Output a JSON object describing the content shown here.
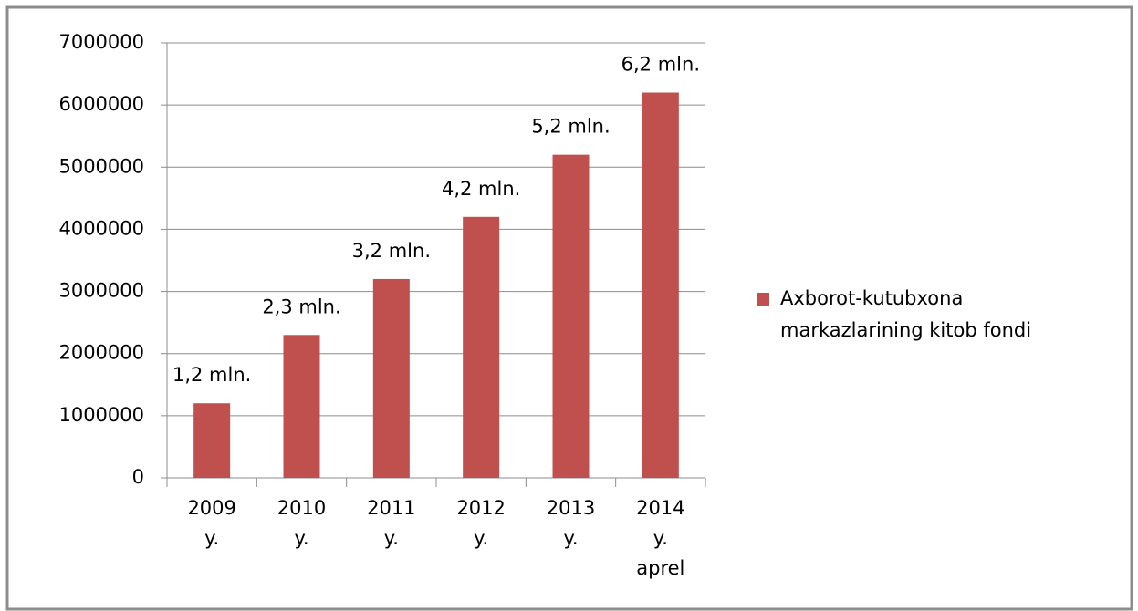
{
  "chart_data": {
    "type": "bar",
    "categories": [
      [
        "2009",
        "y."
      ],
      [
        "2010",
        "y."
      ],
      [
        "2011",
        "y."
      ],
      [
        "2012",
        "y."
      ],
      [
        "2013",
        "y."
      ],
      [
        "2014",
        "y.",
        "aprel"
      ]
    ],
    "series": [
      {
        "name": "Axborot-kutubxona markazlarining kitob fondi",
        "color": "#c0504d",
        "values": [
          1200000,
          2300000,
          3200000,
          4200000,
          5200000,
          6200000
        ],
        "value_labels": [
          "1,2 mln.",
          "2,3 mln.",
          "3,2 mln.",
          "4,2 mln.",
          "5,2 mln.",
          "6,2 mln."
        ]
      }
    ],
    "ylim": [
      0,
      7000000
    ],
    "yticks": [
      0,
      1000000,
      2000000,
      3000000,
      4000000,
      5000000,
      6000000,
      7000000
    ],
    "grid": true,
    "legend": "right"
  }
}
